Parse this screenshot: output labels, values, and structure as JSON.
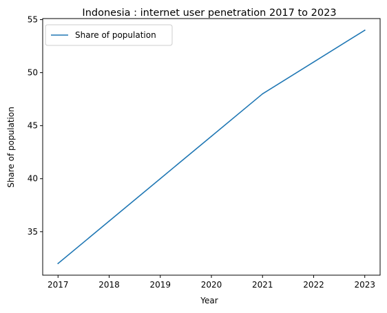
{
  "chart_data": {
    "type": "line",
    "title": "Indonesia : internet user penetration 2017 to 2023",
    "xlabel": "Year",
    "ylabel": "Share of population",
    "x": [
      2017,
      2018,
      2019,
      2020,
      2021,
      2022,
      2023
    ],
    "x_ticks": [
      "2017",
      "2018",
      "2019",
      "2020",
      "2021",
      "2022",
      "2023"
    ],
    "y_ticks": [
      "35",
      "40",
      "45",
      "50",
      "55"
    ],
    "xlim": [
      2016.7,
      2023.3
    ],
    "ylim": [
      30.9,
      55.1
    ],
    "series": [
      {
        "name": "Share of population",
        "values": [
          32,
          36,
          40,
          44,
          48,
          51,
          54
        ],
        "color": "#1f77b4"
      }
    ],
    "grid": false,
    "legend_position": "upper-left"
  }
}
